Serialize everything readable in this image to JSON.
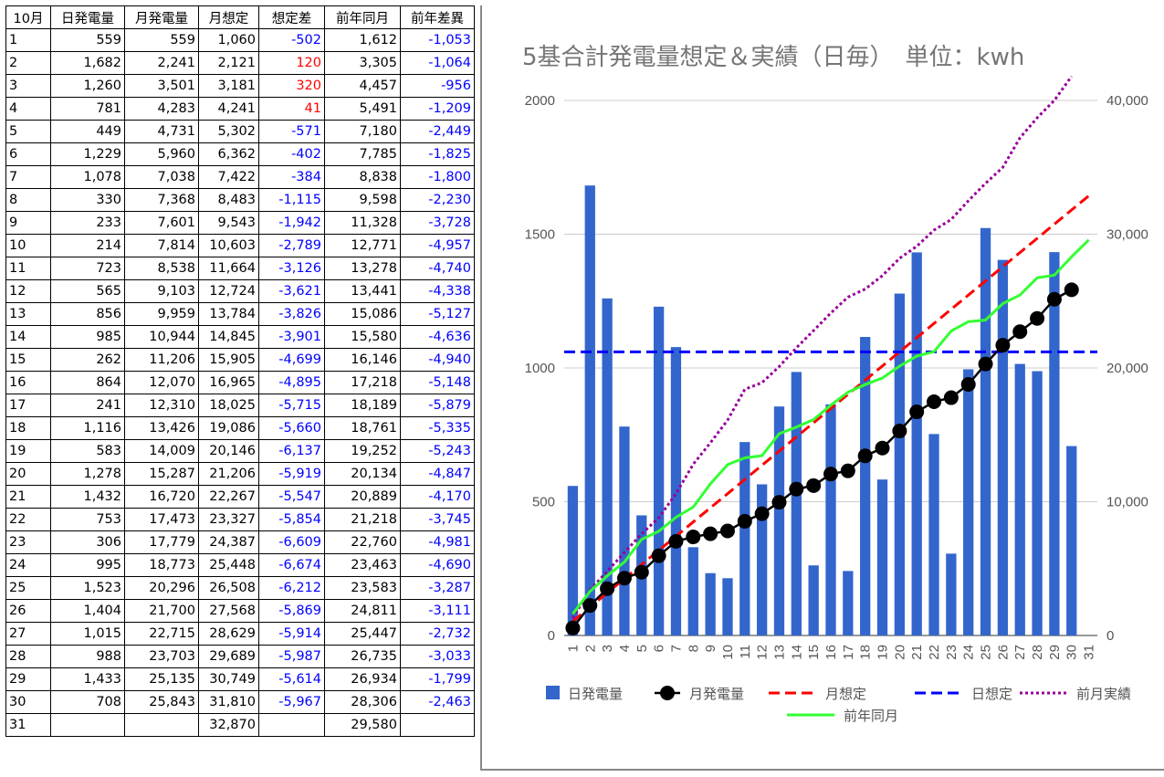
{
  "table": {
    "headers": [
      "10月",
      "日発電量",
      "月発電量",
      "月想定",
      "想定差",
      "前年同月",
      "前年差異"
    ],
    "rows": [
      [
        "1",
        "559",
        "559",
        "1,060",
        "-502",
        "1,612",
        "-1,053"
      ],
      [
        "2",
        "1,682",
        "2,241",
        "2,121",
        "120",
        "3,305",
        "-1,064"
      ],
      [
        "3",
        "1,260",
        "3,501",
        "3,181",
        "320",
        "4,457",
        "-956"
      ],
      [
        "4",
        "781",
        "4,283",
        "4,241",
        "41",
        "5,491",
        "-1,209"
      ],
      [
        "5",
        "449",
        "4,731",
        "5,302",
        "-571",
        "7,180",
        "-2,449"
      ],
      [
        "6",
        "1,229",
        "5,960",
        "6,362",
        "-402",
        "7,785",
        "-1,825"
      ],
      [
        "7",
        "1,078",
        "7,038",
        "7,422",
        "-384",
        "8,838",
        "-1,800"
      ],
      [
        "8",
        "330",
        "7,368",
        "8,483",
        "-1,115",
        "9,598",
        "-2,230"
      ],
      [
        "9",
        "233",
        "7,601",
        "9,543",
        "-1,942",
        "11,328",
        "-3,728"
      ],
      [
        "10",
        "214",
        "7,814",
        "10,603",
        "-2,789",
        "12,771",
        "-4,957"
      ],
      [
        "11",
        "723",
        "8,538",
        "11,664",
        "-3,126",
        "13,278",
        "-4,740"
      ],
      [
        "12",
        "565",
        "9,103",
        "12,724",
        "-3,621",
        "13,441",
        "-4,338"
      ],
      [
        "13",
        "856",
        "9,959",
        "13,784",
        "-3,826",
        "15,086",
        "-5,127"
      ],
      [
        "14",
        "985",
        "10,944",
        "14,845",
        "-3,901",
        "15,580",
        "-4,636"
      ],
      [
        "15",
        "262",
        "11,206",
        "15,905",
        "-4,699",
        "16,146",
        "-4,940"
      ],
      [
        "16",
        "864",
        "12,070",
        "16,965",
        "-4,895",
        "17,218",
        "-5,148"
      ],
      [
        "17",
        "241",
        "12,310",
        "18,025",
        "-5,715",
        "18,189",
        "-5,879"
      ],
      [
        "18",
        "1,116",
        "13,426",
        "19,086",
        "-5,660",
        "18,761",
        "-5,335"
      ],
      [
        "19",
        "583",
        "14,009",
        "20,146",
        "-6,137",
        "19,252",
        "-5,243"
      ],
      [
        "20",
        "1,278",
        "15,287",
        "21,206",
        "-5,919",
        "20,134",
        "-4,847"
      ],
      [
        "21",
        "1,432",
        "16,720",
        "22,267",
        "-5,547",
        "20,889",
        "-4,170"
      ],
      [
        "22",
        "753",
        "17,473",
        "23,327",
        "-5,854",
        "21,218",
        "-3,745"
      ],
      [
        "23",
        "306",
        "17,779",
        "24,387",
        "-6,609",
        "22,760",
        "-4,981"
      ],
      [
        "24",
        "995",
        "18,773",
        "25,448",
        "-6,674",
        "23,463",
        "-4,690"
      ],
      [
        "25",
        "1,523",
        "20,296",
        "26,508",
        "-6,212",
        "23,583",
        "-3,287"
      ],
      [
        "26",
        "1,404",
        "21,700",
        "27,568",
        "-5,869",
        "24,811",
        "-3,111"
      ],
      [
        "27",
        "1,015",
        "22,715",
        "28,629",
        "-5,914",
        "25,447",
        "-2,732"
      ],
      [
        "28",
        "988",
        "23,703",
        "29,689",
        "-5,987",
        "26,735",
        "-3,033"
      ],
      [
        "29",
        "1,433",
        "25,135",
        "30,749",
        "-5,614",
        "26,934",
        "-1,799"
      ],
      [
        "30",
        "708",
        "25,843",
        "31,810",
        "-5,967",
        "28,306",
        "-2,463"
      ],
      [
        "31",
        "",
        "",
        "32,870",
        "",
        "29,580",
        ""
      ]
    ],
    "colors": {
      "negative": "#0000ff",
      "positive": "#ff0000"
    }
  },
  "chart_data": {
    "type": "bar",
    "title": "5基合計発電量想定＆実績（日毎）　単位：kwh",
    "categories": [
      "1",
      "2",
      "3",
      "4",
      "5",
      "6",
      "7",
      "8",
      "9",
      "10",
      "11",
      "12",
      "13",
      "14",
      "15",
      "16",
      "17",
      "18",
      "19",
      "20",
      "21",
      "22",
      "23",
      "24",
      "25",
      "26",
      "27",
      "28",
      "29",
      "30",
      "31"
    ],
    "left_axis": {
      "ticks": [
        "0",
        "500",
        "1000",
        "1500",
        "2000"
      ],
      "range": [
        0,
        2000
      ]
    },
    "right_axis": {
      "ticks": [
        "0",
        "10,000",
        "20,000",
        "30,000",
        "40,000"
      ],
      "range": [
        0,
        40000
      ]
    },
    "grid": true,
    "legend_position": "bottom",
    "series": [
      {
        "name": "日発電量",
        "kind": "bar",
        "axis": "left",
        "color": "#3366cc",
        "values": [
          559,
          1682,
          1260,
          781,
          449,
          1229,
          1078,
          330,
          233,
          214,
          723,
          565,
          856,
          985,
          262,
          864,
          241,
          1116,
          583,
          1278,
          1432,
          753,
          306,
          995,
          1523,
          1404,
          1015,
          988,
          1433,
          708,
          null
        ]
      },
      {
        "name": "月発電量",
        "kind": "line-marker",
        "axis": "right",
        "color": "#000000",
        "values": [
          559,
          2241,
          3501,
          4283,
          4731,
          5960,
          7038,
          7368,
          7601,
          7814,
          8538,
          9103,
          9959,
          10944,
          11206,
          12070,
          12310,
          13426,
          14009,
          15287,
          16720,
          17473,
          17779,
          18773,
          20296,
          21700,
          22715,
          23703,
          25135,
          25843,
          null
        ]
      },
      {
        "name": "月想定",
        "kind": "dashed-line",
        "axis": "right",
        "color": "#ff0000",
        "values": [
          1060,
          2121,
          3181,
          4241,
          5302,
          6362,
          7422,
          8483,
          9543,
          10603,
          11664,
          12724,
          13784,
          14845,
          15905,
          16965,
          18025,
          19086,
          20146,
          21206,
          22267,
          23327,
          24387,
          25448,
          26508,
          27568,
          28629,
          29689,
          30749,
          31810,
          32870
        ]
      },
      {
        "name": "日想定",
        "kind": "dashed-line",
        "axis": "left",
        "color": "#0000ff",
        "values": [
          1060,
          1060,
          1060,
          1060,
          1060,
          1060,
          1060,
          1060,
          1060,
          1060,
          1060,
          1060,
          1060,
          1060,
          1060,
          1060,
          1060,
          1060,
          1060,
          1060,
          1060,
          1060,
          1060,
          1060,
          1060,
          1060,
          1060,
          1060,
          1060,
          1060,
          1060
        ]
      },
      {
        "name": "前月実績",
        "kind": "dotted-line",
        "axis": "right",
        "color": "#990099",
        "values": [
          1300,
          3400,
          4800,
          6200,
          7600,
          8800,
          10600,
          12800,
          14400,
          16100,
          18400,
          18900,
          20100,
          21500,
          22800,
          24100,
          25300,
          25900,
          26900,
          28200,
          29100,
          30300,
          31100,
          32500,
          33800,
          35000,
          37200,
          38700,
          40000,
          41800,
          null
        ]
      },
      {
        "name": "前年同月",
        "kind": "line",
        "axis": "right",
        "color": "#33ff33",
        "values": [
          1612,
          3305,
          4457,
          5491,
          7180,
          7785,
          8838,
          9598,
          11328,
          12771,
          13278,
          13441,
          15086,
          15580,
          16146,
          17218,
          18189,
          18761,
          19252,
          20134,
          20889,
          21218,
          22760,
          23463,
          23583,
          24811,
          25447,
          26735,
          26934,
          28306,
          29580
        ]
      }
    ]
  }
}
